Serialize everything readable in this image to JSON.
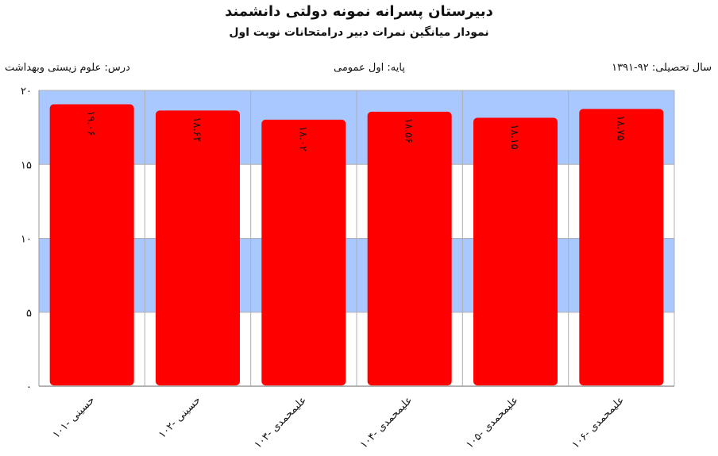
{
  "header": {
    "title": "دبیرستان پسرانه نمونه دولتی دانشمند",
    "subtitle": "نمودار میانگین نمرات دبیر درامتحانات نوبت اول"
  },
  "info": {
    "year": "سال تحصیلی: ۹۲-۱۳۹۱",
    "grade": "پایه: اول عمومی",
    "subject": "درس: علوم زیستی وبهداشت"
  },
  "colors": {
    "bar": "#ff0000",
    "band": "#a8c8ff",
    "grid": "#b0b0b0"
  },
  "chart_data": {
    "type": "bar",
    "categories": [
      "حسینی -۱۰۱",
      "حسینی -۱۰۲",
      "علیمحمدی -۱۰۳",
      "علیمحمدی -۱۰۴",
      "علیمحمدی -۱۰۵",
      "علیمحمدی -۱۰۶"
    ],
    "values": [
      19.06,
      18.64,
      18.02,
      18.56,
      18.15,
      18.75
    ],
    "value_labels": [
      "۱۹.۰۶",
      "۱۸.۶۴",
      "۱۸.۰۲",
      "۱۸.۵۶",
      "۱۸.۱۵",
      "۱۸.۷۵"
    ],
    "ylim": [
      0,
      20
    ],
    "yticks": [
      0,
      5,
      10,
      15,
      20
    ],
    "ytick_labels": [
      "۰",
      "۵",
      "۱۰",
      "۱۵",
      "۲۰"
    ],
    "grid": true
  }
}
